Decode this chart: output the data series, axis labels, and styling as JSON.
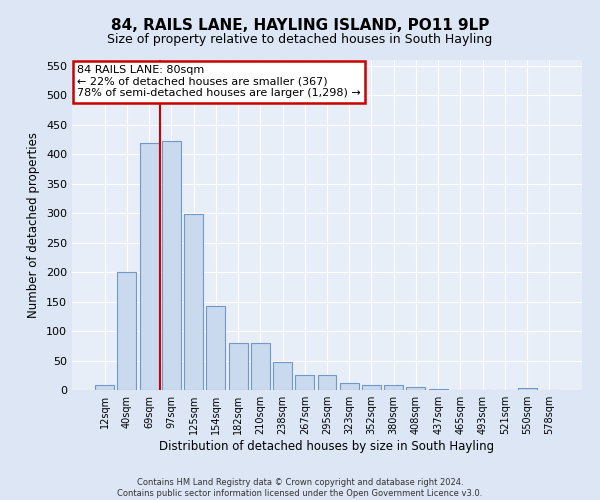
{
  "title": "84, RAILS LANE, HAYLING ISLAND, PO11 9LP",
  "subtitle": "Size of property relative to detached houses in South Hayling",
  "xlabel": "Distribution of detached houses by size in South Hayling",
  "ylabel": "Number of detached properties",
  "footer_line1": "Contains HM Land Registry data © Crown copyright and database right 2024.",
  "footer_line2": "Contains public sector information licensed under the Open Government Licence v3.0.",
  "categories": [
    "12sqm",
    "40sqm",
    "69sqm",
    "97sqm",
    "125sqm",
    "154sqm",
    "182sqm",
    "210sqm",
    "238sqm",
    "267sqm",
    "295sqm",
    "323sqm",
    "352sqm",
    "380sqm",
    "408sqm",
    "437sqm",
    "465sqm",
    "493sqm",
    "521sqm",
    "550sqm",
    "578sqm"
  ],
  "bar_values": [
    8,
    200,
    420,
    422,
    298,
    143,
    79,
    79,
    48,
    25,
    25,
    12,
    9,
    8,
    5,
    2,
    0,
    0,
    0,
    3,
    0
  ],
  "bar_color": "#c9d9ee",
  "bar_edge_color": "#7098c8",
  "annotation_text_line1": "84 RAILS LANE: 80sqm",
  "annotation_text_line2": "← 22% of detached houses are smaller (367)",
  "annotation_text_line3": "78% of semi-detached houses are larger (1,298) →",
  "annotation_box_color": "#ffffff",
  "annotation_box_edge_color": "#cc0000",
  "vline_color": "#cc0000",
  "vline_x_index": 2.5,
  "ylim": [
    0,
    560
  ],
  "yticks": [
    0,
    50,
    100,
    150,
    200,
    250,
    300,
    350,
    400,
    450,
    500,
    550
  ],
  "background_color": "#dce6f4",
  "plot_background_color": "#e8eef8",
  "grid_color": "#ffffff",
  "title_fontsize": 11,
  "subtitle_fontsize": 9,
  "xlabel_fontsize": 8.5,
  "ylabel_fontsize": 8.5,
  "tick_fontsize": 8,
  "annot_fontsize": 8
}
